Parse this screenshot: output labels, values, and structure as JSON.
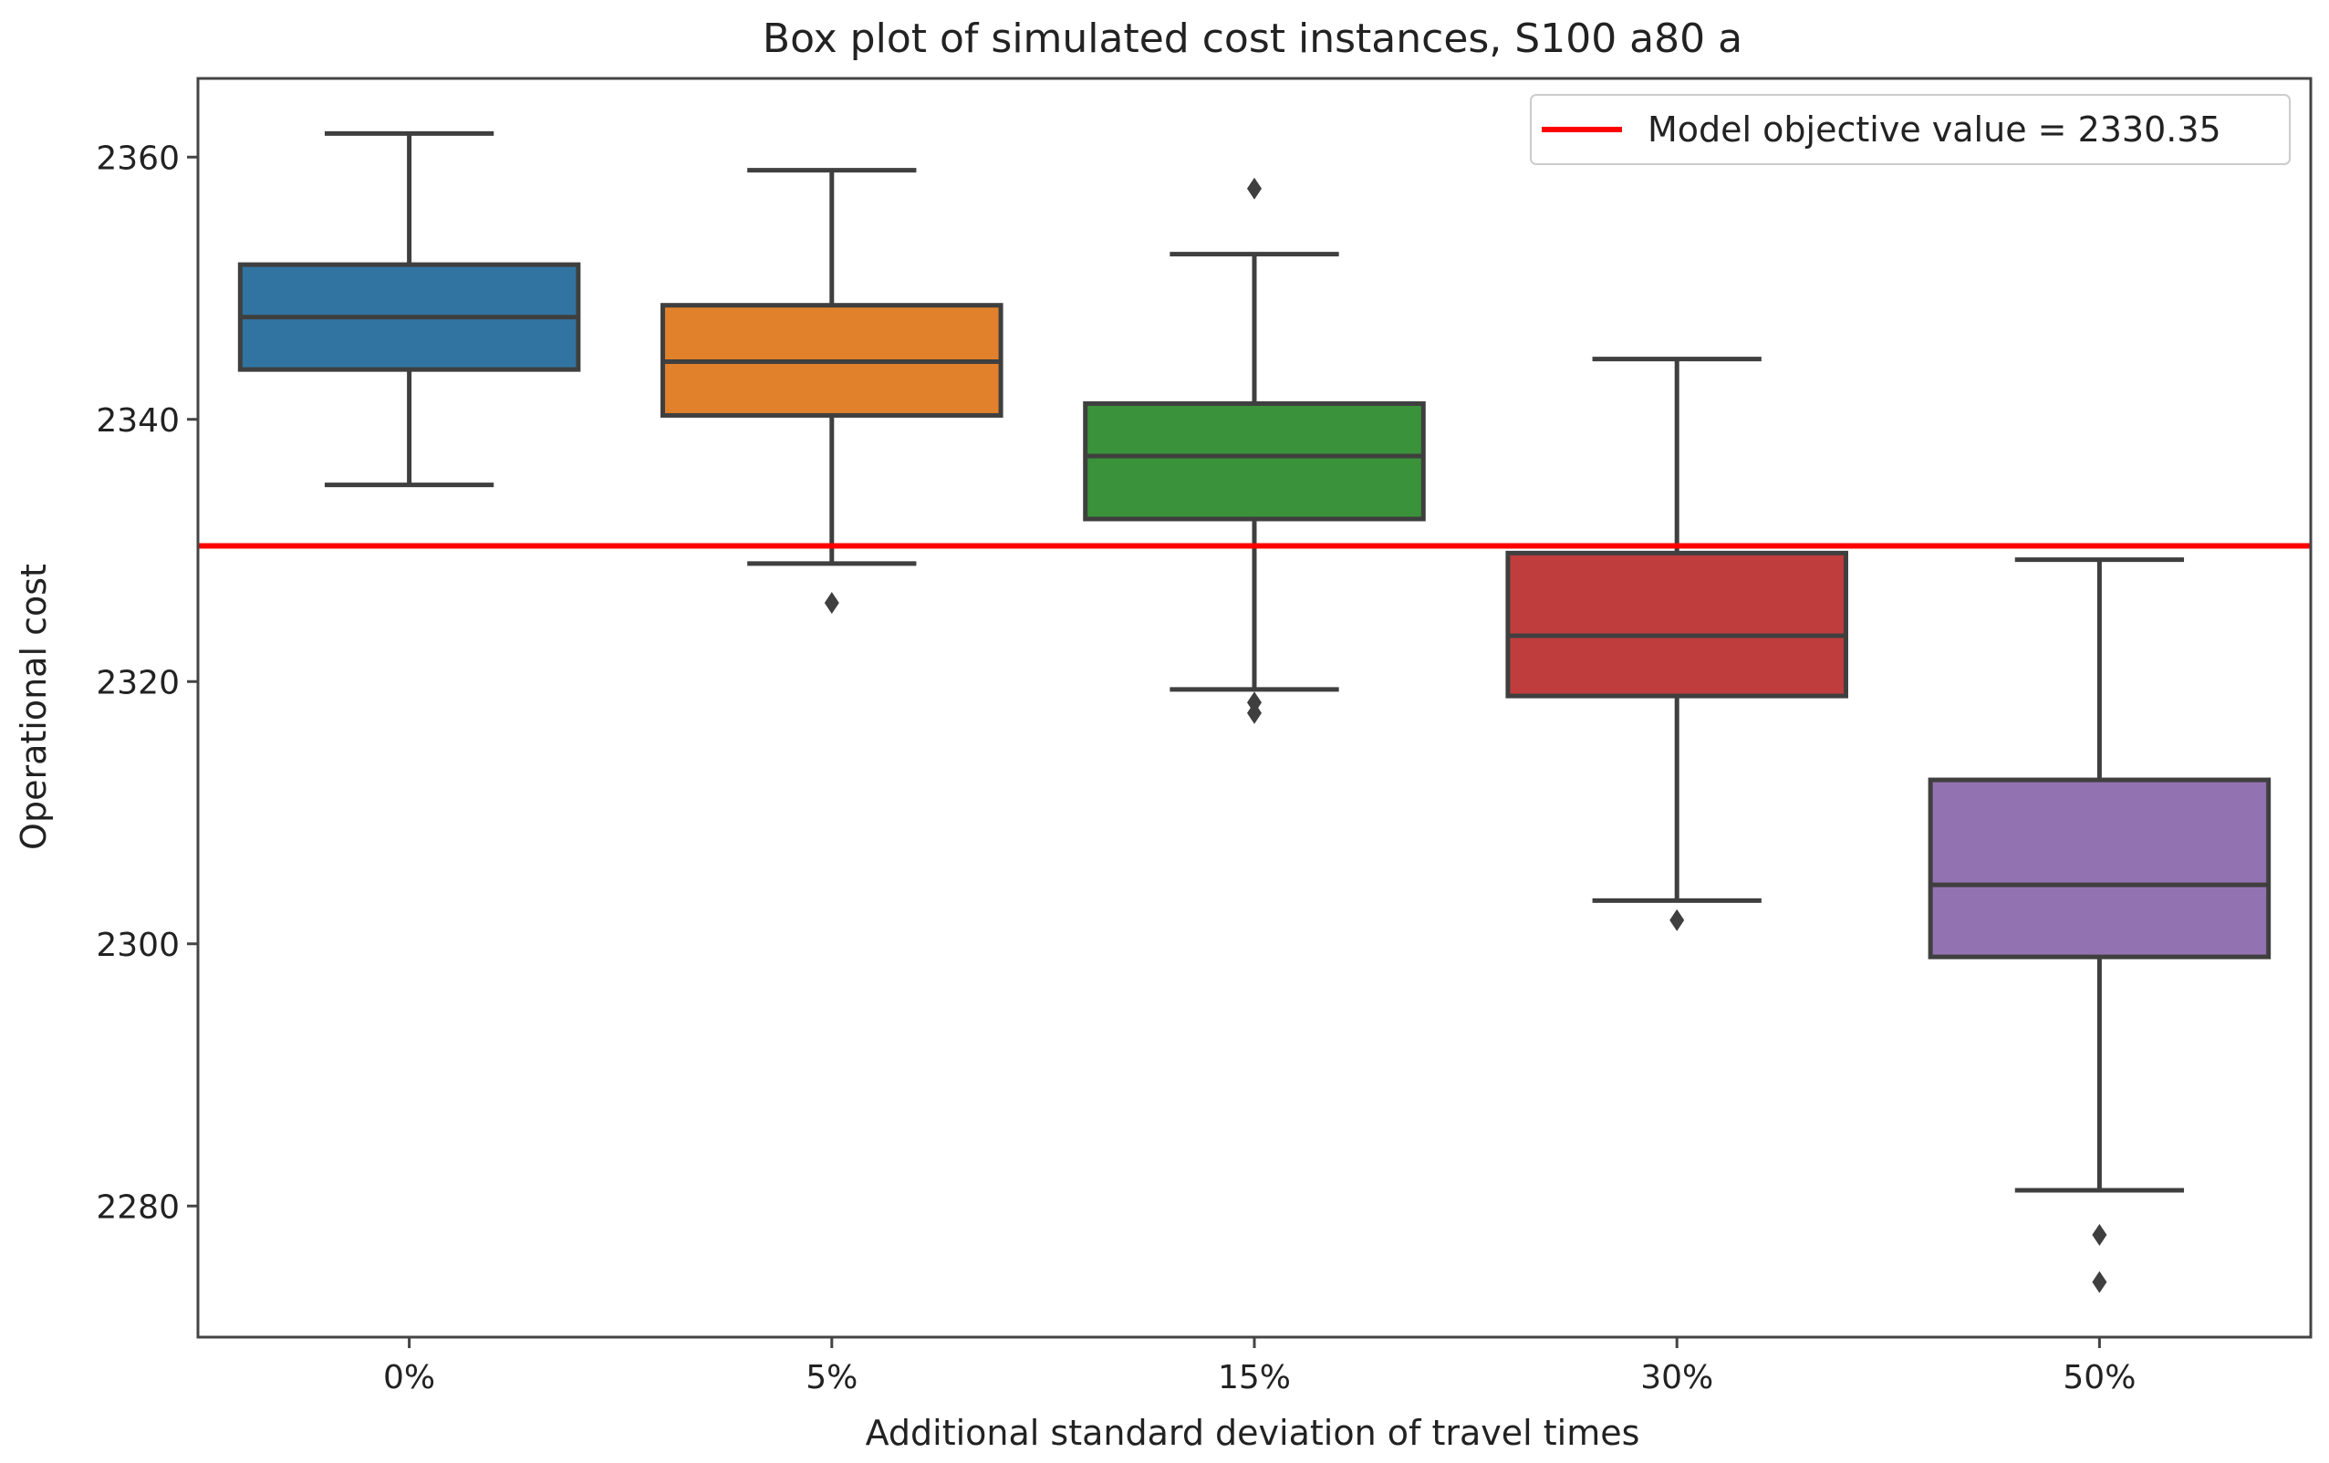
{
  "chart_data": {
    "type": "box",
    "title": "Box plot of simulated cost instances, S100 a80 a",
    "xlabel": "Additional standard deviation of travel times",
    "ylabel": "Operational cost",
    "ylim": [
      2270,
      2366
    ],
    "yticks": [
      2280,
      2300,
      2320,
      2340,
      2360
    ],
    "categories": [
      "0%",
      "5%",
      "15%",
      "30%",
      "50%"
    ],
    "series": [
      {
        "name": "0%",
        "color": "#3274a1",
        "whisker_low": 2335.0,
        "q1": 2343.8,
        "median": 2347.8,
        "q3": 2351.8,
        "whisker_high": 2361.8,
        "outliers": []
      },
      {
        "name": "5%",
        "color": "#e1812c",
        "whisker_low": 2329.0,
        "q1": 2340.3,
        "median": 2344.4,
        "q3": 2348.7,
        "whisker_high": 2359.0,
        "outliers": [
          2326.0
        ]
      },
      {
        "name": "15%",
        "color": "#3a923a",
        "whisker_low": 2319.4,
        "q1": 2332.4,
        "median": 2337.2,
        "q3": 2341.2,
        "whisker_high": 2352.6,
        "outliers": [
          2357.6,
          2318.4,
          2317.6
        ]
      },
      {
        "name": "30%",
        "color": "#c03d3e",
        "whisker_low": 2303.3,
        "q1": 2318.9,
        "median": 2323.5,
        "q3": 2329.8,
        "whisker_high": 2344.6,
        "outliers": [
          2301.8
        ]
      },
      {
        "name": "50%",
        "color": "#9372b2",
        "whisker_low": 2281.2,
        "q1": 2299.0,
        "median": 2304.5,
        "q3": 2312.5,
        "whisker_high": 2329.3,
        "outliers": [
          2277.8,
          2274.2
        ]
      }
    ],
    "reference_line": {
      "value": 2330.35,
      "color": "#ff0000",
      "label": "Model objective value = 2330.35"
    },
    "legend_position": "top-right",
    "grid": false
  }
}
